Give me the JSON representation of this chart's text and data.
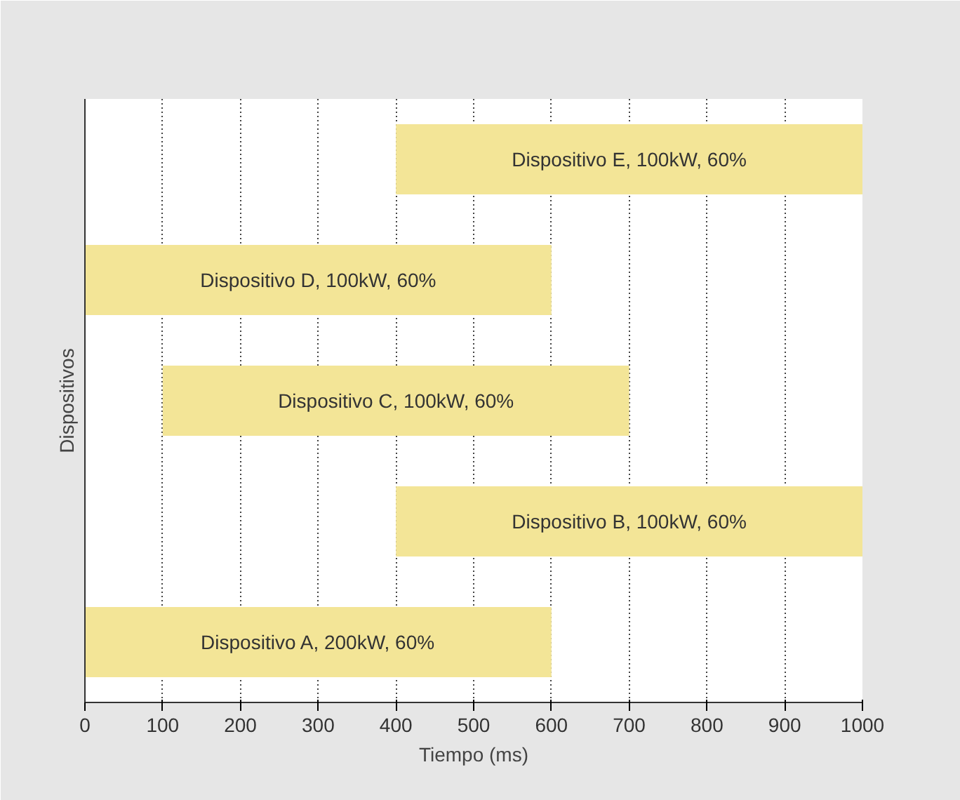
{
  "chart_data": {
    "type": "bar",
    "orientation": "horizontal",
    "categories": [
      "Dispositivo E, 100kW, 60%",
      "Dispositivo D, 100kW, 60%",
      "Dispositivo C, 100kW, 60%",
      "Dispositivo B, 100kW, 60%",
      "Dispositivo A, 200kW, 60%"
    ],
    "base": [
      400,
      0,
      100,
      400,
      0
    ],
    "values": [
      600,
      600,
      600,
      600,
      600
    ],
    "color": "#f3e597",
    "xlim": [
      0,
      1000
    ],
    "xticks": [
      0,
      100,
      200,
      300,
      400,
      500,
      600,
      700,
      800,
      900,
      1000
    ],
    "xlabel": "Tiempo (ms)",
    "ylabel": "Dispositivos",
    "grid": "x"
  }
}
